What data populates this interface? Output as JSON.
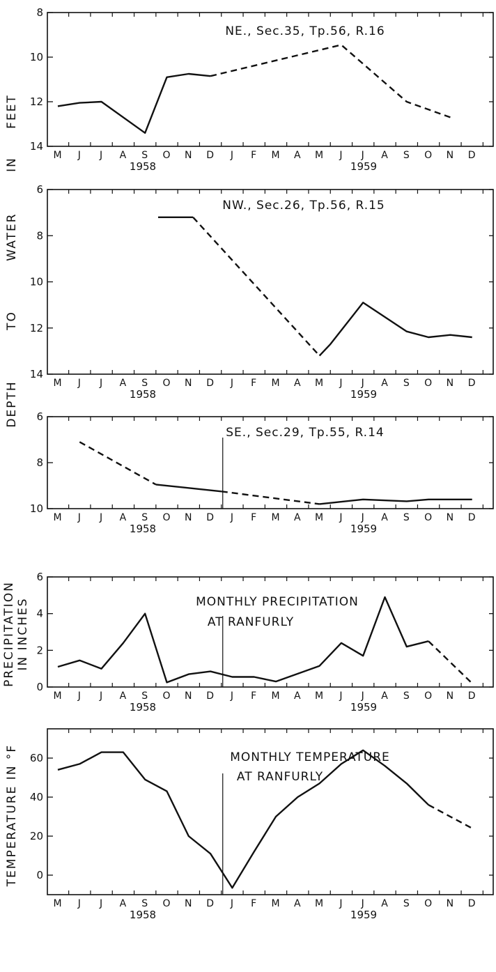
{
  "months": [
    "M",
    "J",
    "J",
    "A",
    "S",
    "O",
    "N",
    "D",
    "J",
    "F",
    "M",
    "A",
    "M",
    "J",
    "J",
    "A",
    "S",
    "O",
    "N",
    "D"
  ],
  "years": [
    "1958",
    "1959"
  ],
  "shared_ylabel_words": [
    "FEET",
    "IN",
    "WATER",
    "TO",
    "DEPTH"
  ],
  "colors": {
    "line": "#111111",
    "background": "#ffffff"
  },
  "chart_data": [
    {
      "type": "line",
      "title": "NE., Sec.35, Tp.56, R.16",
      "ylabel": "DEPTH TO WATER IN FEET",
      "ylim": [
        14,
        8
      ],
      "inverted": true,
      "yticks": [
        8,
        10,
        12,
        14
      ],
      "x": [
        0,
        1,
        2,
        3,
        4,
        5,
        6,
        7,
        8,
        9,
        10,
        11,
        12,
        13,
        14,
        15,
        16,
        17,
        18,
        19
      ],
      "series": [
        {
          "style": "solid",
          "points": [
            [
              0,
              12.2
            ],
            [
              1,
              12.05
            ],
            [
              2,
              12.0
            ],
            [
              4,
              13.4
            ],
            [
              5,
              10.9
            ],
            [
              6,
              10.75
            ],
            [
              7,
              10.85
            ]
          ]
        },
        {
          "style": "dashed",
          "points": [
            [
              7,
              10.85
            ],
            [
              13,
              9.45
            ],
            [
              16,
              12.0
            ],
            [
              18,
              12.7
            ]
          ]
        }
      ]
    },
    {
      "type": "line",
      "title": "NW., Sec.26, Tp.56, R.15",
      "ylabel": "DEPTH TO WATER IN FEET",
      "ylim": [
        14,
        6
      ],
      "inverted": true,
      "yticks": [
        6,
        8,
        10,
        12,
        14
      ],
      "series": [
        {
          "style": "solid",
          "points": [
            [
              4.6,
              7.2
            ],
            [
              6.2,
              7.2
            ]
          ]
        },
        {
          "style": "dashed",
          "points": [
            [
              6.2,
              7.2
            ],
            [
              12,
              13.2
            ]
          ]
        },
        {
          "style": "solid",
          "points": [
            [
              12,
              13.2
            ],
            [
              12.5,
              12.7
            ],
            [
              14,
              10.9
            ],
            [
              16,
              12.15
            ],
            [
              17,
              12.4
            ],
            [
              18,
              12.3
            ],
            [
              19,
              12.4
            ]
          ]
        }
      ]
    },
    {
      "type": "line",
      "title": "SE., Sec.29, Tp.55, R.14",
      "ylabel": "DEPTH TO WATER IN FEET",
      "ylim": [
        10,
        6
      ],
      "inverted": true,
      "yticks": [
        6,
        8,
        10
      ],
      "series": [
        {
          "style": "dashed",
          "points": [
            [
              1,
              7.1
            ],
            [
              4.5,
              8.95
            ]
          ]
        },
        {
          "style": "solid",
          "points": [
            [
              4.5,
              8.95
            ],
            [
              7.5,
              9.25
            ]
          ]
        },
        {
          "style": "dashed",
          "points": [
            [
              7.5,
              9.25
            ],
            [
              12,
              9.8
            ]
          ]
        },
        {
          "style": "solid",
          "points": [
            [
              12,
              9.8
            ],
            [
              14,
              9.6
            ],
            [
              16,
              9.68
            ],
            [
              17,
              9.6
            ],
            [
              19,
              9.6
            ]
          ]
        }
      ]
    },
    {
      "type": "line",
      "title": "MONTHLY PRECIPITATION",
      "subtitle": "AT RANFURLY",
      "ylabel": "PRECIPITATION IN INCHES",
      "ylim": [
        0,
        6
      ],
      "inverted": false,
      "yticks": [
        0,
        2,
        4,
        6
      ],
      "series": [
        {
          "style": "solid",
          "points": [
            [
              0,
              1.1
            ],
            [
              1,
              1.45
            ],
            [
              2,
              1.0
            ],
            [
              3,
              2.4
            ],
            [
              4,
              4.0
            ],
            [
              5,
              0.25
            ],
            [
              6,
              0.7
            ],
            [
              7,
              0.85
            ],
            [
              8,
              0.55
            ],
            [
              9,
              0.55
            ],
            [
              10,
              0.3
            ],
            [
              12,
              1.15
            ],
            [
              13,
              2.4
            ],
            [
              14,
              1.7
            ],
            [
              15,
              4.9
            ],
            [
              16,
              2.2
            ],
            [
              17,
              2.5
            ]
          ]
        },
        {
          "style": "dashed",
          "points": [
            [
              17,
              2.5
            ],
            [
              19,
              0.2
            ]
          ]
        }
      ]
    },
    {
      "type": "line",
      "title": "MONTHLY TEMPERATURE",
      "subtitle": "AT RANFURLY",
      "ylabel": "TEMPERATURE IN °F",
      "ylim": [
        -10,
        75
      ],
      "inverted": false,
      "yticks": [
        0,
        20,
        40,
        60
      ],
      "series": [
        {
          "style": "solid",
          "points": [
            [
              0,
              54
            ],
            [
              1,
              57
            ],
            [
              2,
              63
            ],
            [
              3,
              63
            ],
            [
              4,
              49
            ],
            [
              5,
              43
            ],
            [
              6,
              20
            ],
            [
              7,
              11
            ],
            [
              8,
              -6.5
            ],
            [
              9,
              12
            ],
            [
              10,
              30
            ],
            [
              11,
              40
            ],
            [
              12,
              47
            ],
            [
              13,
              57
            ],
            [
              14,
              64
            ],
            [
              15,
              56
            ],
            [
              16,
              47
            ],
            [
              17,
              36
            ]
          ]
        },
        {
          "style": "dashed",
          "points": [
            [
              17,
              36
            ],
            [
              19,
              24
            ]
          ]
        }
      ]
    }
  ]
}
